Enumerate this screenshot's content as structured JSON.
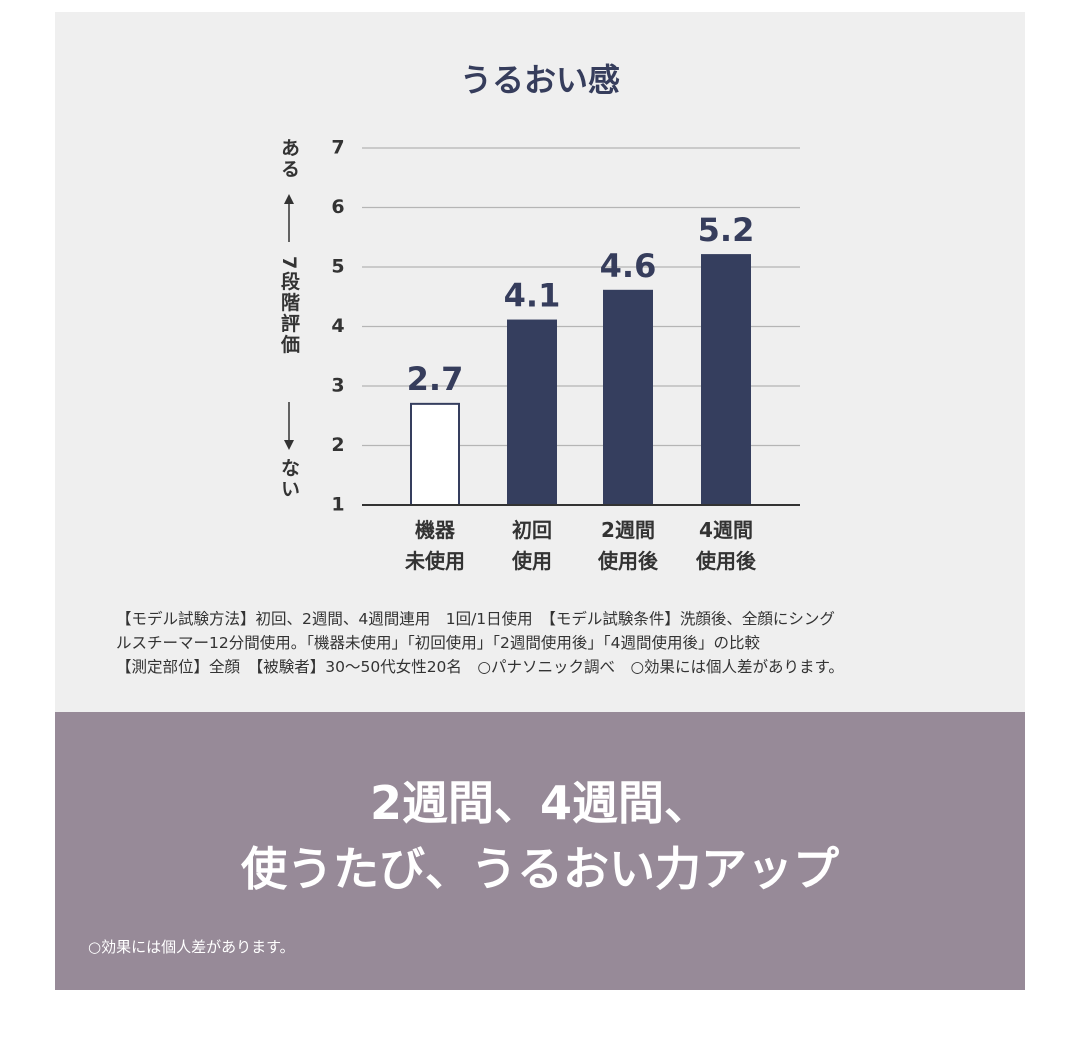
{
  "chart_data": {
    "type": "bar",
    "title": "うるおい感",
    "y_label": [
      "ある",
      "7段階評価",
      "ない"
    ],
    "categories": [
      "機器\n未使用",
      "初回\n使用",
      "2週間\n使用後",
      "4週間\n使用後"
    ],
    "values": [
      2.7,
      4.1,
      4.6,
      5.2
    ],
    "colors": [
      "#ffffff",
      "#353e5e",
      "#353e5e",
      "#353e5e"
    ],
    "ylim": [
      1,
      7
    ],
    "yticks": [
      1,
      2,
      3,
      4,
      5,
      6,
      7
    ],
    "grid": true
  },
  "notes": [
    "【モデル試験方法】初回、2週間、4週間連用　1回/1日使用　【モデル試験条件】洗顔後、全顔にシング",
    "ルスチーマー12分間使用。「機器未使用」「初回使用」「2週間使用後」「4週間使用後」の比較",
    "【測定部位】全顔　【被験者】30〜50代女性20名　○パナソニック調べ　○効果には個人差があります。"
  ],
  "banner": {
    "headline": [
      "2週間、4週間、",
      "使うたび、うるおい力アップ"
    ],
    "footnote": "○効果には個人差があります。"
  }
}
